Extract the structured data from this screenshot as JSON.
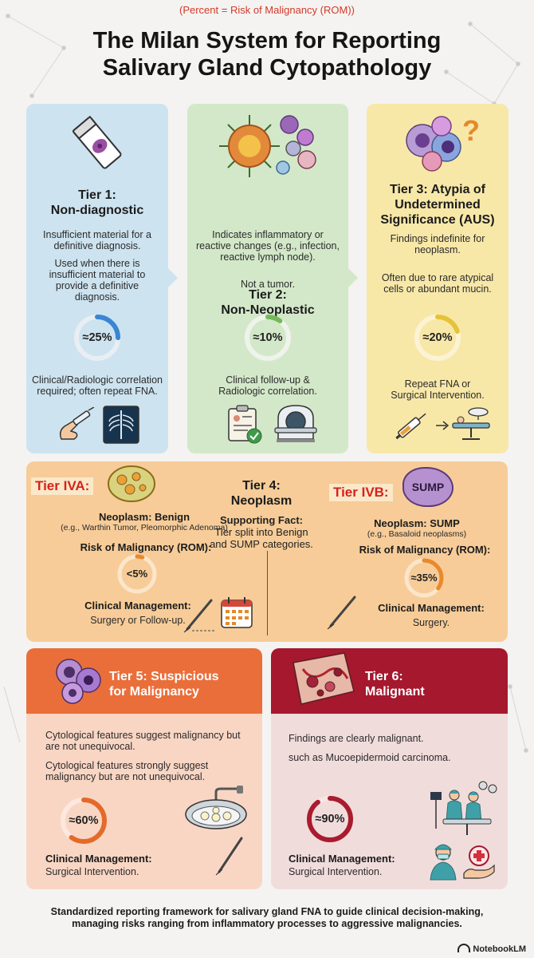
{
  "note": "(Percent = Risk of Malignancy (ROM))",
  "title_line1": "The Milan System for Reporting",
  "title_line2": "Salivary Gland Cytopathology",
  "colors": {
    "tier1": "#cde3ef",
    "tier2": "#d3e8c9",
    "tier3": "#f8e8a8",
    "tier4": "#f7cc98",
    "tier5_bg": "#f9d6c4",
    "tier5_head": "#ea6e3a",
    "tier6_bg": "#f1dcdc",
    "tier6_head": "#a5182d",
    "ring_blue": "#3a86d4",
    "ring_green": "#74b85b",
    "ring_yellow": "#e6c238",
    "ring_orange": "#e88a2c",
    "ring_orange_dark": "#e46a2a",
    "ring_red": "#a81c2e"
  },
  "tier1": {
    "title1": "Tier 1:",
    "title2": "Non-diagnostic",
    "desc1": [
      "Insufficient material for a",
      "definitive diagnosis."
    ],
    "desc2": [
      "Used when there is",
      "insufficient material to",
      "provide a definitive",
      "diagnosis."
    ],
    "rom_label": "≈25%",
    "rom": 25,
    "mgmt": [
      "Clinical/Radiologic correlation",
      "required; often repeat FNA."
    ],
    "icons": [
      "syringe-hand-icon",
      "chest-xray-icon"
    ]
  },
  "tier2": {
    "title1": "Tier 2:",
    "title2": "Non-Neoplastic",
    "desc1": [
      "Indicates inflammatory or",
      "reactive changes (e.g., infection,",
      "reactive lymph node)."
    ],
    "desc2": [
      "Not a tumor."
    ],
    "rom_label": "≈10%",
    "rom": 10,
    "mgmt": [
      "Clinical follow-up &",
      "Radiologic correlation."
    ],
    "icons": [
      "clipboard-check-icon",
      "ct-scanner-icon"
    ]
  },
  "tier3": {
    "title1": "Tier 3: Atypia of",
    "title2": "Undetermined",
    "title3": "Significance (AUS)",
    "desc1": [
      "Findings indefinite for",
      "neoplasm."
    ],
    "desc2": [
      "Often due to rare atypical",
      "cells or abundant mucin."
    ],
    "rom_label": "≈20%",
    "rom": 20,
    "mgmt": [
      "Repeat FNA or",
      "Surgical Intervention."
    ],
    "icons": [
      "syringe-icon",
      "surgery-table-icon"
    ]
  },
  "tier4": {
    "title1": "Tier 4:",
    "title2": "Neoplasm",
    "fact": [
      "Supporting Fact:",
      "Tier split into Benign",
      "and SUMP categories."
    ],
    "a": {
      "tag": "Tier IVA:",
      "neoplasm": "Neoplasm: Benign",
      "examples": "(e.g., Warthin Tumor, Pleomorphic Adenoma)",
      "rom_title": "Risk of Malignancy (ROM):",
      "rom_label": "<5%",
      "rom": 5,
      "mgmt_title": "Clinical Management:",
      "mgmt": "Surgery or Follow-up."
    },
    "b": {
      "tag": "Tier IVB:",
      "badge": "SUMP",
      "neoplasm": "Neoplasm: SUMP",
      "examples": "(e.g., Basaloid neoplasms)",
      "rom_title": "Risk of Malignancy (ROM):",
      "rom_label": "≈35%",
      "rom": 35,
      "mgmt_title": "Clinical Management:",
      "mgmt": "Surgery."
    }
  },
  "tier5": {
    "title1": "Tier 5: Suspicious",
    "title2": "for Malignancy",
    "desc1": [
      "Cytological features suggest malignancy but",
      "are not unequivocal."
    ],
    "desc2": [
      "Cytological features strongly suggest",
      "malignancy but are not unequivocal."
    ],
    "rom_label": "≈60%",
    "rom": 60,
    "mgmt_title": "Clinical Management:",
    "mgmt": "Surgical Intervention."
  },
  "tier6": {
    "title1": "Tier 6:",
    "title2": "Malignant",
    "desc1": "Findings are clearly malignant.",
    "desc2": "such as Mucoepidermoid carcinoma.",
    "rom_label": "≈90%",
    "rom": 90,
    "mgmt_title": "Clinical Management:",
    "mgmt": "Surgical Intervention."
  },
  "footer": [
    "Standardized reporting framework for salivary gland FNA to guide clinical decision-making,",
    "managing risks ranging from inflammatory processes to aggressive malignancies."
  ],
  "brand": "NotebookLM"
}
